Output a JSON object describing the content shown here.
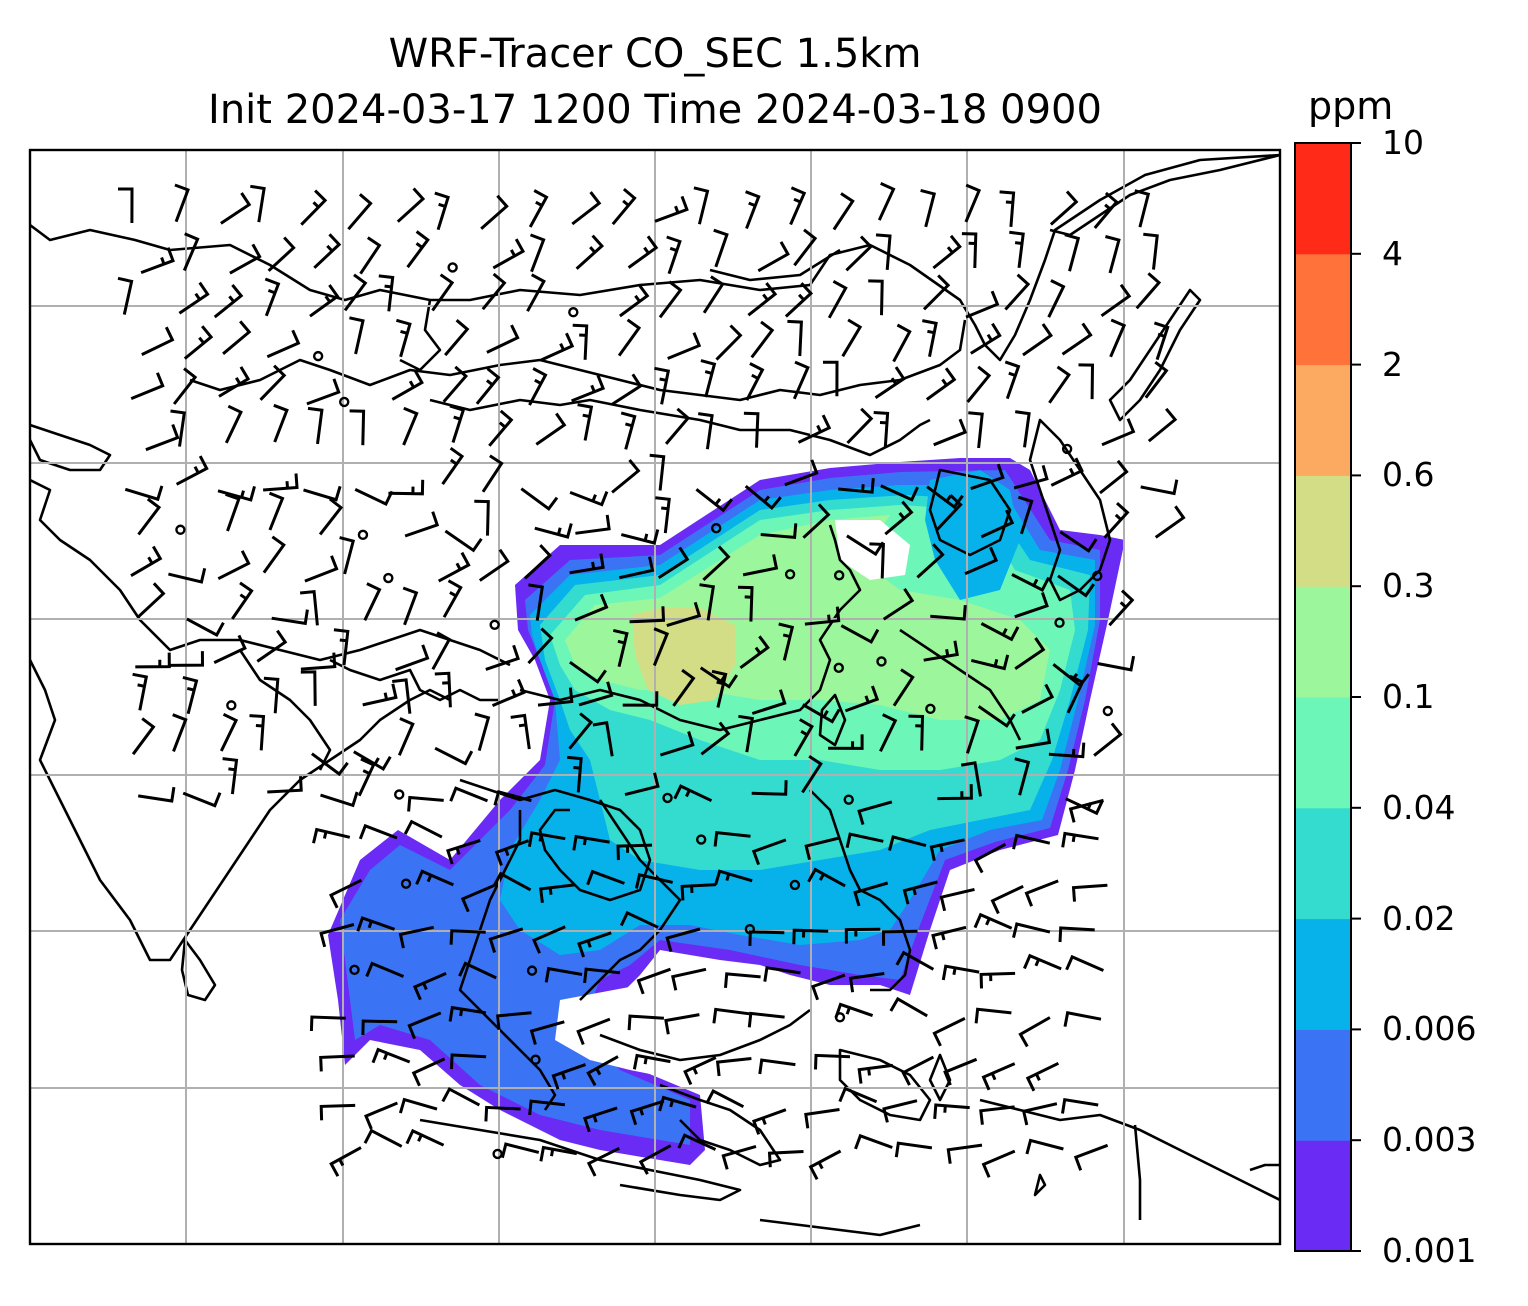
{
  "title": {
    "line1": "WRF-Tracer CO_SEC 1.5km",
    "line2": "Init 2024-03-17 1200 Time 2024-03-18 0900"
  },
  "colorbar": {
    "unit": "ppm",
    "levels": [
      "0.001",
      "0.003",
      "0.006",
      "0.02",
      "0.04",
      "0.1",
      "0.3",
      "0.6",
      "2",
      "4",
      "10"
    ],
    "colors": [
      "#6a2bf4",
      "#3a74f4",
      "#07b2ea",
      "#34dcd0",
      "#6cf7b9",
      "#9cf79c",
      "#d2dd86",
      "#fcaa62",
      "#ff733b",
      "#ff2b18"
    ]
  },
  "chart_data": {
    "type": "heatmap",
    "title": "WRF-Tracer CO_SEC 1.5km",
    "subtitle": "Init 2024-03-17 1200 Time 2024-03-18 0900",
    "variable": "CO_SEC",
    "level": "1.5km",
    "init_time": "2024-03-17 1200",
    "valid_time": "2024-03-18 0900",
    "units": "ppm",
    "contour_levels": [
      0.001,
      0.003,
      0.006,
      0.02,
      0.04,
      0.1,
      0.3,
      0.6,
      2,
      4,
      10
    ],
    "overlays": [
      "coastlines",
      "country borders",
      "gridlines",
      "wind barbs"
    ],
    "grid": true
  }
}
